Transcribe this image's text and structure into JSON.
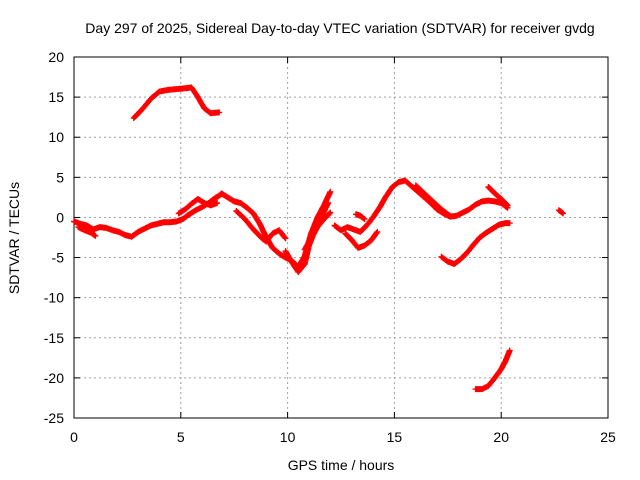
{
  "chart_data": {
    "type": "scatter",
    "title": "Day 297 of 2025, Sidereal Day-to-day VTEC variation (SDTVAR) for receiver gvdg",
    "xlabel": "GPS time / hours",
    "ylabel": "SDTVAR / TECUs",
    "xlim": [
      0,
      25
    ],
    "ylim": [
      -25,
      20
    ],
    "xticks": [
      "0",
      "5",
      "10",
      "15",
      "20",
      "25"
    ],
    "yticks": [
      "20",
      "15",
      "10",
      "5",
      "0",
      "-5",
      "-10",
      "-15",
      "-20",
      "-25"
    ],
    "grid": true,
    "marker": "+",
    "series": [
      {
        "name": "SDTVAR",
        "color": "#ff0000",
        "segments": [
          {
            "x": [
              0.0,
              0.3,
              0.6,
              0.9,
              1.2,
              1.5,
              1.8,
              2.1,
              2.4,
              2.7,
              3.0,
              3.3,
              3.6,
              3.9,
              4.2,
              4.5,
              4.8,
              5.1,
              5.4,
              5.7,
              6.0,
              6.3,
              6.6,
              6.9
            ],
            "y": [
              -0.5,
              -0.8,
              -1.0,
              -1.5,
              -1.2,
              -1.3,
              -1.6,
              -1.8,
              -2.2,
              -2.4,
              -1.8,
              -1.4,
              -1.0,
              -0.8,
              -0.6,
              -0.6,
              -0.5,
              -0.2,
              0.4,
              0.9,
              1.3,
              1.8,
              2.4,
              2.9
            ]
          },
          {
            "x": [
              0.2,
              0.5,
              0.8,
              1.0
            ],
            "y": [
              -1.2,
              -1.6,
              -1.9,
              -2.3
            ]
          },
          {
            "x": [
              4.9,
              5.2,
              5.5,
              5.8,
              6.1,
              6.4,
              6.7
            ],
            "y": [
              0.5,
              1.0,
              1.7,
              2.3,
              1.8,
              1.5,
              1.8
            ]
          },
          {
            "x": [
              2.8,
              3.2,
              3.6,
              4.0,
              4.4,
              4.8,
              5.2,
              5.5,
              5.8,
              6.1,
              6.4,
              6.8
            ],
            "y": [
              12.4,
              13.5,
              14.8,
              15.7,
              15.9,
              16.0,
              16.1,
              16.2,
              15.0,
              13.6,
              13.0,
              13.1
            ]
          },
          {
            "x": [
              6.9,
              7.2,
              7.5,
              7.8,
              8.1,
              8.4,
              8.7,
              9.0,
              9.3,
              9.6,
              9.9,
              10.2,
              10.5,
              10.8,
              11.1,
              11.4,
              11.7,
              12.0
            ],
            "y": [
              3.0,
              2.5,
              2.0,
              1.8,
              1.2,
              0.5,
              -0.8,
              -2.5,
              -3.8,
              -4.5,
              -5.0,
              -5.4,
              -6.2,
              -4.8,
              -2.0,
              0.0,
              1.5,
              3.2
            ]
          },
          {
            "x": [
              7.6,
              8.0,
              8.4,
              8.8,
              9.0,
              9.3,
              9.6,
              9.9
            ],
            "y": [
              0.8,
              -0.2,
              -1.5,
              -2.6,
              -3.0,
              -2.0,
              -1.6,
              -2.6
            ]
          },
          {
            "x": [
              9.9,
              10.2,
              10.5,
              10.8,
              11.0,
              11.3,
              11.6,
              11.9
            ],
            "y": [
              -4.2,
              -5.6,
              -6.8,
              -5.8,
              -3.5,
              -1.5,
              0.2,
              1.8
            ]
          },
          {
            "x": [
              10.8,
              11.1,
              11.4,
              11.7,
              12.0
            ],
            "y": [
              -4.0,
              -2.6,
              -1.2,
              -0.2,
              0.6
            ]
          },
          {
            "x": [
              12.2,
              12.5,
              12.8,
              13.1,
              13.4,
              13.7,
              14.0,
              14.3,
              14.6,
              14.9,
              15.2,
              15.5,
              15.8,
              16.1,
              16.4,
              16.7,
              17.0,
              17.3,
              17.6,
              17.9,
              18.2,
              18.5,
              18.8,
              19.1,
              19.4,
              19.7,
              20.0,
              20.3
            ],
            "y": [
              -1.0,
              -1.6,
              -1.2,
              -1.5,
              -1.8,
              -1.0,
              0.0,
              1.2,
              2.6,
              3.8,
              4.4,
              4.6,
              3.9,
              3.2,
              2.5,
              1.8,
              1.0,
              0.5,
              0.1,
              0.2,
              0.6,
              1.0,
              1.6,
              2.0,
              2.1,
              2.0,
              1.8,
              1.2
            ]
          },
          {
            "x": [
              12.7,
              13.0,
              13.3,
              13.6,
              13.9,
              14.2
            ],
            "y": [
              -2.0,
              -2.8,
              -3.8,
              -3.5,
              -2.9,
              -1.8
            ]
          },
          {
            "x": [
              13.2,
              13.4,
              13.6
            ],
            "y": [
              0.4,
              0.2,
              -0.2
            ]
          },
          {
            "x": [
              16.0,
              16.4,
              16.8,
              17.2,
              17.6
            ],
            "y": [
              4.0,
              3.0,
              2.0,
              1.0,
              0.2
            ]
          },
          {
            "x": [
              19.4,
              19.7,
              20.0,
              20.3
            ],
            "y": [
              3.8,
              3.0,
              2.3,
              1.5
            ]
          },
          {
            "x": [
              17.2,
              17.5,
              17.8,
              18.1,
              18.4,
              18.7,
              19.0,
              19.3,
              19.6,
              19.9,
              20.2,
              20.4
            ],
            "y": [
              -4.9,
              -5.5,
              -5.8,
              -5.2,
              -4.4,
              -3.4,
              -2.5,
              -1.9,
              -1.4,
              -0.9,
              -0.7,
              -0.7
            ]
          },
          {
            "x": [
              18.8,
              19.1,
              19.4,
              19.7,
              20.0,
              20.2,
              20.4
            ],
            "y": [
              -21.4,
              -21.4,
              -21.0,
              -20.0,
              -18.9,
              -17.9,
              -16.6
            ]
          },
          {
            "x": [
              22.7,
              22.8,
              22.9
            ],
            "y": [
              0.9,
              0.7,
              0.5
            ]
          }
        ]
      }
    ]
  }
}
